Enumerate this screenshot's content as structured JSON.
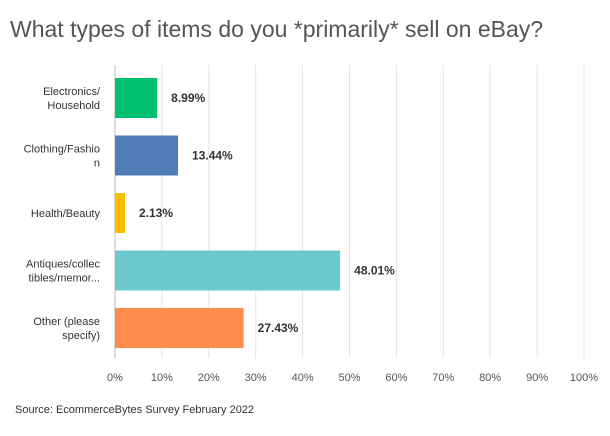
{
  "chart_data": {
    "type": "bar",
    "orientation": "horizontal",
    "title": "What types of items do you *primarily* sell on eBay?",
    "categories": [
      [
        "Electronics/",
        "Household"
      ],
      [
        "Clothing/Fashio",
        "n"
      ],
      [
        "Health/Beauty"
      ],
      [
        "Antiques/collec",
        "tibles/memor..."
      ],
      [
        "Other (please",
        "specify)"
      ]
    ],
    "values": [
      8.99,
      13.44,
      2.13,
      48.01,
      27.43
    ],
    "value_labels": [
      "8.99%",
      "13.44%",
      "2.13%",
      "48.01%",
      "27.43%"
    ],
    "colors": [
      "#00bf6f",
      "#507cb6",
      "#f9be00",
      "#6bc8cd",
      "#ff8b4f"
    ],
    "xlim": [
      0,
      100
    ],
    "xticks": [
      0,
      10,
      20,
      30,
      40,
      50,
      60,
      70,
      80,
      90,
      100
    ],
    "xtick_labels": [
      "0%",
      "10%",
      "20%",
      "30%",
      "40%",
      "50%",
      "60%",
      "70%",
      "80%",
      "90%",
      "100%"
    ],
    "grid": true,
    "source": "Source: EcommerceBytes Survey February 2022"
  }
}
